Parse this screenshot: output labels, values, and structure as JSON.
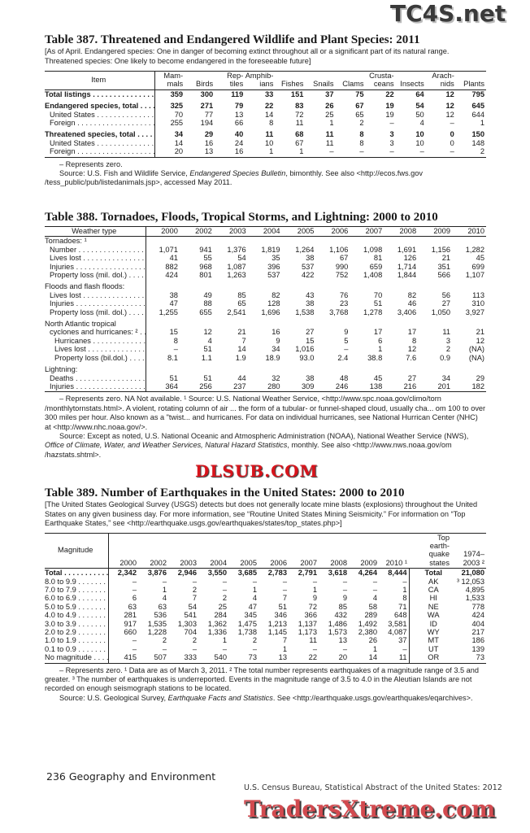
{
  "t387": {
    "title": "Table 387. Threatened and Endangered Wildlife and Plant Species: 2011",
    "subtitle": "[As of April. Endangered species: One in danger of becoming extinct  throughout all or a significant part of its natural range. Threatened species: One likely to become endangered in the foreseeable future]",
    "stub_header": "Item",
    "headers": [
      "Mam- mals",
      "Birds",
      "Rep- tiles",
      "Amphib- ians",
      "Fishes",
      "Snails",
      "Clams",
      "Crusta- ceans",
      "Insects",
      "Arach- nids",
      "Plants"
    ],
    "rows": [
      {
        "label": "Total listings",
        "bold": true,
        "values": [
          "359",
          "300",
          "119",
          "33",
          "151",
          "37",
          "75",
          "22",
          "64",
          "12",
          "795"
        ]
      },
      {
        "label": "Endangered species, total",
        "bold": true,
        "gap": true,
        "values": [
          "325",
          "271",
          "79",
          "22",
          "83",
          "26",
          "67",
          "19",
          "54",
          "12",
          "645"
        ]
      },
      {
        "label": "United States",
        "indent": 1,
        "values": [
          "70",
          "77",
          "13",
          "14",
          "72",
          "25",
          "65",
          "19",
          "50",
          "12",
          "644"
        ]
      },
      {
        "label": "Foreign",
        "indent": 1,
        "values": [
          "255",
          "194",
          "66",
          "8",
          "11",
          "1",
          "2",
          "–",
          "4",
          "–",
          "1"
        ]
      },
      {
        "label": "Threatened species, total",
        "bold": true,
        "gap": true,
        "values": [
          "34",
          "29",
          "40",
          "11",
          "68",
          "11",
          "8",
          "3",
          "10",
          "0",
          "150"
        ]
      },
      {
        "label": "United States",
        "indent": 1,
        "values": [
          "14",
          "16",
          "24",
          "10",
          "67",
          "11",
          "8",
          "3",
          "10",
          "0",
          "148"
        ]
      },
      {
        "label": "Foreign",
        "indent": 1,
        "values": [
          "20",
          "13",
          "16",
          "1",
          "1",
          "–",
          "–",
          "–",
          "–",
          "–",
          "2"
        ]
      }
    ],
    "notes": [
      "– Represents zero.",
      "Source: U.S. Fish and Wildlife Service, <i>Endangered Species Bulletin</i>, bimonthly. See also &lt;http://ecos.fws.gov /tess_public/pub/listedanimals.jsp&gt;, accessed May 2011."
    ]
  },
  "t388": {
    "title": "Table 388. Tornadoes, Floods, Tropical Storms, and Lightning: 2000 to 2010",
    "stub_header": "Weather type",
    "headers": [
      "2000",
      "2002",
      "2003",
      "2004",
      "2005",
      "2006",
      "2007",
      "2008",
      "2009",
      "2010"
    ],
    "rows": [
      {
        "label": "Tornadoes: ¹",
        "nodots": true,
        "values": []
      },
      {
        "label": "Number",
        "indent": 1,
        "values": [
          "1,071",
          "941",
          "1,376",
          "1,819",
          "1,264",
          "1,106",
          "1,098",
          "1,691",
          "1,156",
          "1,282"
        ]
      },
      {
        "label": "Lives lost",
        "indent": 1,
        "values": [
          "41",
          "55",
          "54",
          "35",
          "38",
          "67",
          "81",
          "126",
          "21",
          "45"
        ]
      },
      {
        "label": "Injuries",
        "indent": 1,
        "values": [
          "882",
          "968",
          "1,087",
          "396",
          "537",
          "990",
          "659",
          "1,714",
          "351",
          "699"
        ]
      },
      {
        "label": "Property loss (mil. dol.)",
        "indent": 1,
        "values": [
          "424",
          "801",
          "1,263",
          "537",
          "422",
          "752",
          "1,408",
          "1,844",
          "566",
          "1,107"
        ]
      },
      {
        "label": "Floods and flash floods:",
        "nodots": true,
        "gap": true,
        "values": []
      },
      {
        "label": "Lives lost",
        "indent": 1,
        "values": [
          "38",
          "49",
          "85",
          "82",
          "43",
          "76",
          "70",
          "82",
          "56",
          "113"
        ]
      },
      {
        "label": "Injuries",
        "indent": 1,
        "values": [
          "47",
          "88",
          "65",
          "128",
          "38",
          "23",
          "51",
          "46",
          "27",
          "310"
        ]
      },
      {
        "label": "Property loss (mil. dol.)",
        "indent": 1,
        "values": [
          "1,255",
          "655",
          "2,541",
          "1,696",
          "1,538",
          "3,768",
          "1,278",
          "3,406",
          "1,050",
          "3,927"
        ]
      },
      {
        "label": "North Atlantic tropical",
        "nodots": true,
        "gap": true,
        "values": []
      },
      {
        "label": "cyclones and hurricanes: ²",
        "indent": 1,
        "values": [
          "15",
          "12",
          "21",
          "16",
          "27",
          "9",
          "17",
          "17",
          "11",
          "21"
        ]
      },
      {
        "label": "Hurricanes",
        "indent": 2,
        "values": [
          "8",
          "4",
          "7",
          "9",
          "15",
          "5",
          "6",
          "8",
          "3",
          "12"
        ]
      },
      {
        "label": "Lives lost",
        "indent": 2,
        "values": [
          "–",
          "51",
          "14",
          "34",
          "1,016",
          "–",
          "1",
          "12",
          "2",
          "(NA)"
        ]
      },
      {
        "label": "Property loss (bil.dol.)",
        "indent": 2,
        "values": [
          "8.1",
          "1.1",
          "1.9",
          "18.9",
          "93.0",
          "2.4",
          "38.8",
          "7.6",
          "0.9",
          "(NA)"
        ]
      },
      {
        "label": "Lightning:",
        "nodots": true,
        "gap": true,
        "values": []
      },
      {
        "label": "Deaths",
        "indent": 1,
        "values": [
          "51",
          "51",
          "44",
          "32",
          "38",
          "48",
          "45",
          "27",
          "34",
          "29"
        ]
      },
      {
        "label": "Injuries",
        "indent": 1,
        "values": [
          "364",
          "256",
          "237",
          "280",
          "309",
          "246",
          "138",
          "216",
          "201",
          "182"
        ]
      }
    ],
    "notes": [
      "– Represents zero. NA Not available. ¹ Source: U.S. National Weather Service, &lt;http://www.spc.noaa.gov/climo/torn /monthlytornstats.html&gt;. A violent, rotating column of air ... the form of a tubular- or funnel-shaped cloud, usually cha... om 100 to over 300 miles per hour. Also known as a \"twist... and hurricanes. For data on individual hurricanes, see National Hurrican Center (NHC) at &lt;http://www.nhc.noaa.gov/&gt;.",
      "Source: Except as noted, U.S. National Oceanic and Atmospheric Administration (NOAA), National Weather Service (NWS), <i>Office of Climate, Water, and Weather Services, Natural Hazard Statistics</i>, monthly. See also &lt;http://www.nws.noaa.gov/om /hazstats.shtml&gt;."
    ]
  },
  "t389": {
    "title": "Table 389. Number of Earthquakes in the United States: 2000 to 2010",
    "subtitle": "[The United States Geological Survey (USGS) detects but does not generally locate mine blasts (explosions) throughout the United States on any given business day. For more information, see “Routine United States Mining Seismicity.” For information on “Top Earthquake States,” see <http://earthquake.usgs.gov/earthquakes/states/top_states.php>]",
    "stub_header": "Magnitude",
    "headers": [
      "2000",
      "2002",
      "2003",
      "2004",
      "2005",
      "2006",
      "2007",
      "2008",
      "2009",
      "2010 ¹",
      "Top earth- quake states",
      "1974– 2003 ²"
    ],
    "rows": [
      {
        "label": "Total",
        "bold": true,
        "values": [
          "2,342",
          "3,876",
          "2,946",
          "3,550",
          "3,685",
          "2,783",
          "2,791",
          "3,618",
          "4,264",
          "8,444",
          "Total",
          "21,080"
        ]
      },
      {
        "label": "8.0 to 9.9",
        "values": [
          "–",
          "–",
          "–",
          "–",
          "–",
          "–",
          "–",
          "–",
          "–",
          "–",
          "AK",
          "³ 12,053"
        ]
      },
      {
        "label": "7.0 to 7.9",
        "values": [
          "–",
          "1",
          "2",
          "–",
          "1",
          "–",
          "1",
          "–",
          "–",
          "1",
          "CA",
          "4,895"
        ]
      },
      {
        "label": "6.0 to 6.9",
        "values": [
          "6",
          "4",
          "7",
          "2",
          "4",
          "7",
          "9",
          "9",
          "4",
          "8",
          "HI",
          "1,533"
        ]
      },
      {
        "label": "5.0 to 5.9",
        "values": [
          "63",
          "63",
          "54",
          "25",
          "47",
          "51",
          "72",
          "85",
          "58",
          "71",
          "NE",
          "778"
        ]
      },
      {
        "label": "4.0 to 4.9",
        "values": [
          "281",
          "536",
          "541",
          "284",
          "345",
          "346",
          "366",
          "432",
          "289",
          "648",
          "WA",
          "424"
        ]
      },
      {
        "label": "3.0 to 3.9",
        "values": [
          "917",
          "1,535",
          "1,303",
          "1,362",
          "1,475",
          "1,213",
          "1,137",
          "1,486",
          "1,492",
          "3,581",
          "ID",
          "404"
        ]
      },
      {
        "label": "2.0 to 2.9",
        "values": [
          "660",
          "1,228",
          "704",
          "1,336",
          "1,738",
          "1,145",
          "1,173",
          "1,573",
          "2,380",
          "4,087",
          "WY",
          "217"
        ]
      },
      {
        "label": "1.0 to 1.9",
        "values": [
          "–",
          "2",
          "2",
          "1",
          "2",
          "7",
          "11",
          "13",
          "26",
          "37",
          "MT",
          "186"
        ]
      },
      {
        "label": "0.1 to 0.9",
        "values": [
          "–",
          "–",
          "–",
          "–",
          "–",
          "1",
          "–",
          "–",
          "1",
          "–",
          "UT",
          "139"
        ]
      },
      {
        "label": "No magnitude",
        "values": [
          "415",
          "507",
          "333",
          "540",
          "73",
          "13",
          "22",
          "20",
          "14",
          "11",
          "OR",
          "73"
        ]
      }
    ],
    "notes": [
      "– Represents zero. ¹ Data are as of March 3, 2011. ² The total number represents earthquakes of a magnitude range of 3.5 and greater. ³ The number of earthquakes is underreported. Events in the magnitude range of 3.5 to 4.0 in the Aleutian Islands are not recorded on enough seismograph stations to be located.",
      "Source: U.S. Geological Survey, <i>Earthquake Facts and Statistics</i>. See &lt;http://earthquake.usgs.gov/earthquakes/eqarchives&gt;."
    ]
  },
  "footer": {
    "page_section": "236  Geography and Environment",
    "publication": "U.S. Census Bureau, Statistical Abstract of the United States: 2012"
  },
  "watermarks": {
    "top": "TC4S.net",
    "middle": "DLSUB.COM",
    "bottom": "TradersXtreme.com"
  }
}
